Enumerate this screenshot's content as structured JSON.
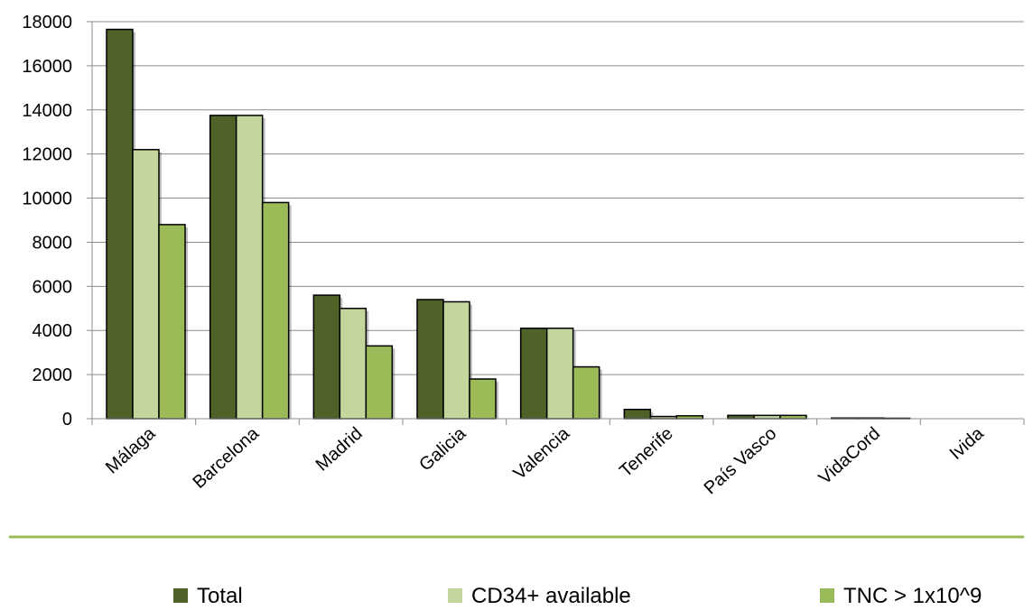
{
  "chart_data": {
    "type": "bar",
    "categories": [
      "Málaga",
      "Barcelona",
      "Madrid",
      "Galicia",
      "Valencia",
      "Tenerife",
      "País Vasco",
      "VidaCord",
      "Ivida"
    ],
    "series": [
      {
        "name": "Total",
        "color": "#4f6228",
        "values": [
          17650,
          13750,
          5600,
          5400,
          4100,
          420,
          150,
          30,
          0
        ]
      },
      {
        "name": "CD34+ available",
        "color": "#c3d69b",
        "values": [
          12200,
          13750,
          5000,
          5300,
          4100,
          100,
          150,
          30,
          0
        ]
      },
      {
        "name": "TNC > 1x10^9",
        "color": "#9bbb59",
        "values": [
          8800,
          9800,
          3300,
          1800,
          2350,
          130,
          150,
          20,
          0
        ]
      }
    ],
    "ylim": [
      0,
      18000
    ],
    "yticks": [
      0,
      2000,
      4000,
      6000,
      8000,
      10000,
      12000,
      14000,
      16000,
      18000
    ],
    "grid": true,
    "legend": "bottom",
    "divider_color": "#9bbb59"
  }
}
